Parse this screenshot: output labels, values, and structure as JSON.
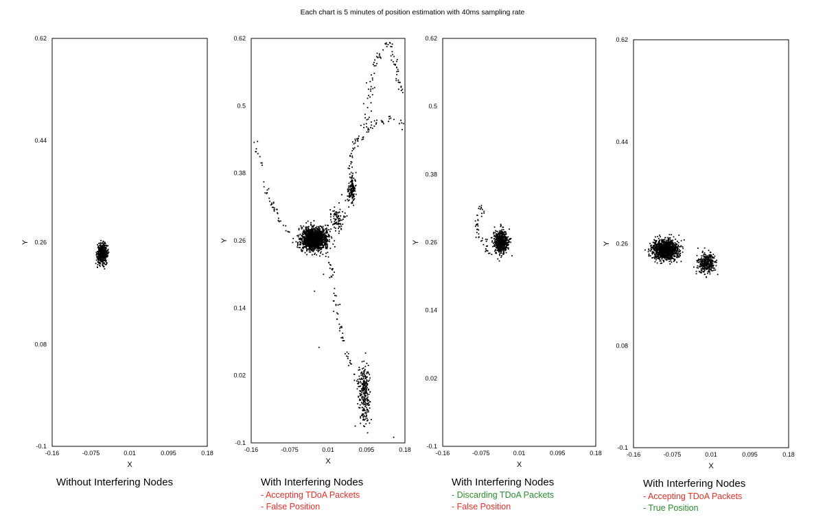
{
  "title": "Each chart is 5 minutes of position estimation with 40ms sampling rate",
  "colors": {
    "point": "#000000",
    "frame": "#000000",
    "red_note": "#e0302a",
    "green_note": "#2d8a2d"
  },
  "chart_data": [
    {
      "type": "scatter",
      "xlabel": "X",
      "ylabel": "Y",
      "xlim": [
        -0.16,
        0.18
      ],
      "ylim": [
        -0.1,
        0.62
      ],
      "xticks": [
        "-0.16",
        "-0.075",
        "0.01",
        "0.095",
        "0.18"
      ],
      "yticks": [
        "-0.1",
        "0.08",
        "0.26",
        "0.44",
        "0.62"
      ],
      "caption": "Without Interfering Nodes",
      "notes": [],
      "clusters": [
        {
          "cx": -0.05,
          "cy": 0.24,
          "sx": 0.0055,
          "sy": 0.0085,
          "n": 520
        }
      ],
      "paths": []
    },
    {
      "type": "scatter",
      "xlabel": "X",
      "ylabel": "Y",
      "xlim": [
        -0.16,
        0.18
      ],
      "ylim": [
        -0.1,
        0.62
      ],
      "xticks": [
        "-0.16",
        "-0.075",
        "0.01",
        "0.095",
        "0.18"
      ],
      "yticks": [
        "-0.1",
        "0.02",
        "0.14",
        "0.26",
        "0.38",
        "0.5",
        "0.62"
      ],
      "caption": "With Interfering Nodes",
      "notes": [
        {
          "text": "- Accepting TDoA Packets",
          "color": "red"
        },
        {
          "text": "- False Position",
          "color": "red"
        }
      ],
      "clusters": [
        {
          "cx": -0.02,
          "cy": 0.263,
          "sx": 0.014,
          "sy": 0.01,
          "n": 1400
        },
        {
          "cx": 0.062,
          "cy": 0.35,
          "sx": 0.0045,
          "sy": 0.012,
          "n": 150
        },
        {
          "cx": 0.09,
          "cy": -0.01,
          "sx": 0.006,
          "sy": 0.025,
          "n": 260
        },
        {
          "cx": 0.03,
          "cy": 0.3,
          "sx": 0.008,
          "sy": 0.01,
          "n": 90
        }
      ],
      "paths": [
        {
          "points": [
            [
              -0.155,
              0.45
            ],
            [
              -0.148,
              0.42
            ],
            [
              -0.14,
              0.4
            ],
            [
              -0.135,
              0.37
            ],
            [
              -0.12,
              0.34
            ],
            [
              -0.1,
              0.3
            ],
            [
              -0.075,
              0.27
            ]
          ],
          "n": 45,
          "jitter": 0.003
        },
        {
          "points": [
            [
              0.0,
              0.25
            ],
            [
              0.02,
              0.2
            ],
            [
              0.025,
              0.15
            ],
            [
              0.04,
              0.1
            ],
            [
              0.05,
              0.06
            ],
            [
              0.07,
              0.02
            ],
            [
              0.09,
              -0.02
            ]
          ],
          "n": 70,
          "jitter": 0.003
        },
        {
          "points": [
            [
              0.055,
              0.38
            ],
            [
              0.06,
              0.41
            ],
            [
              0.08,
              0.45
            ],
            [
              0.1,
              0.48
            ],
            [
              0.1,
              0.5
            ],
            [
              0.11,
              0.56
            ],
            [
              0.12,
              0.59
            ],
            [
              0.145,
              0.615
            ],
            [
              0.16,
              0.57
            ],
            [
              0.17,
              0.52
            ]
          ],
          "n": 110,
          "jitter": 0.004
        },
        {
          "points": [
            [
              0.07,
              0.43
            ],
            [
              0.09,
              0.45
            ],
            [
              0.12,
              0.47
            ],
            [
              0.15,
              0.48
            ],
            [
              0.17,
              0.47
            ],
            [
              0.175,
              0.46
            ]
          ],
          "n": 40,
          "jitter": 0.004
        }
      ],
      "outliers": [
        [
          -0.01,
          0.07
        ],
        [
          0.07,
          -0.07
        ],
        [
          0.155,
          -0.09
        ],
        [
          -0.02,
          0.17
        ],
        [
          0.0,
          0.2
        ]
      ]
    },
    {
      "type": "scatter",
      "xlabel": "X",
      "ylabel": "Y",
      "xlim": [
        -0.16,
        0.18
      ],
      "ylim": [
        -0.1,
        0.62
      ],
      "xticks": [
        "-0.16",
        "-0.075",
        "0.01",
        "0.095",
        "0.18"
      ],
      "yticks": [
        "-0.1",
        "0.02",
        "0.14",
        "0.26",
        "0.38",
        "0.5",
        "0.62"
      ],
      "caption": "With Interfering Nodes",
      "notes": [
        {
          "text": "- Discarding TDoA Packets",
          "color": "green"
        },
        {
          "text": "- False Position",
          "color": "red"
        }
      ],
      "clusters": [
        {
          "cx": -0.03,
          "cy": 0.26,
          "sx": 0.0075,
          "sy": 0.01,
          "n": 650
        }
      ],
      "paths": [
        {
          "points": [
            [
              -0.08,
              0.325
            ],
            [
              -0.075,
              0.32
            ],
            [
              -0.07,
              0.318
            ],
            [
              -0.085,
              0.3
            ],
            [
              -0.082,
              0.28
            ],
            [
              -0.08,
              0.27
            ],
            [
              -0.065,
              0.262
            ],
            [
              -0.06,
              0.245
            ]
          ],
          "n": 45,
          "jitter": 0.003
        }
      ],
      "outliers": []
    },
    {
      "type": "scatter",
      "xlabel": "X",
      "ylabel": "Y",
      "xlim": [
        -0.16,
        0.18
      ],
      "ylim": [
        -0.1,
        0.62
      ],
      "xticks": [
        "-0.16",
        "-0.075",
        "0.01",
        "0.095",
        "0.18"
      ],
      "yticks": [
        "-0.1",
        "0.08",
        "0.26",
        "0.44",
        "0.62"
      ],
      "caption": "With Interfering Nodes",
      "notes": [
        {
          "text": "- Accepting TDoA Packets",
          "color": "red"
        },
        {
          "text": "- True Position",
          "color": "green"
        }
      ],
      "clusters": [
        {
          "cx": -0.09,
          "cy": 0.25,
          "sx": 0.014,
          "sy": 0.009,
          "n": 1100
        },
        {
          "cx": 0.0,
          "cy": 0.225,
          "sx": 0.009,
          "sy": 0.009,
          "n": 300
        }
      ],
      "paths": [],
      "outliers": []
    }
  ]
}
